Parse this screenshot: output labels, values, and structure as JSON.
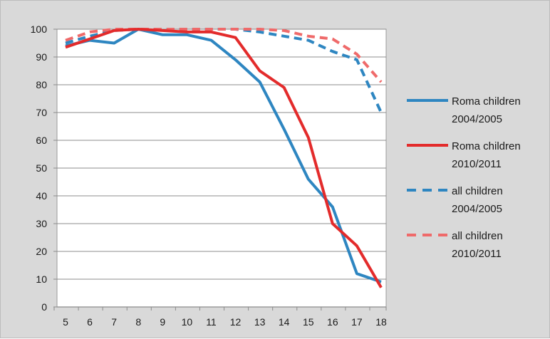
{
  "chart_data": {
    "type": "line",
    "title": "",
    "xlabel": "",
    "ylabel": "",
    "x": [
      5,
      6,
      7,
      8,
      9,
      10,
      11,
      12,
      13,
      14,
      15,
      16,
      17,
      18
    ],
    "ylim": [
      0,
      100
    ],
    "yticks": [
      0,
      10,
      20,
      30,
      40,
      50,
      60,
      70,
      80,
      90,
      100
    ],
    "grid": "horizontal",
    "legend_position": "right",
    "series": [
      {
        "name": [
          "Roma children",
          "2004/2005"
        ],
        "color": "#2e86c1",
        "style": "solid",
        "values": [
          94,
          96,
          95,
          100,
          98,
          98,
          96,
          89,
          81,
          64,
          46,
          36,
          12,
          9
        ]
      },
      {
        "name": [
          "Roma children",
          "2010/2011"
        ],
        "color": "#e32b2b",
        "style": "solid",
        "values": [
          93.5,
          96.5,
          99.5,
          100,
          99.5,
          99,
          99,
          97,
          85,
          79,
          61,
          30,
          22,
          7
        ]
      },
      {
        "name": [
          "all children",
          "2004/2005"
        ],
        "color": "#2e86c1",
        "style": "dashed",
        "values": [
          95,
          97.5,
          99.5,
          100,
          100,
          100,
          100,
          100,
          99,
          97.5,
          96,
          92,
          89,
          70
        ]
      },
      {
        "name": [
          "all children",
          "2010/2011"
        ],
        "color": "#ef6a6a",
        "style": "dashed",
        "values": [
          96,
          99,
          100,
          100,
          100,
          100,
          100,
          100,
          100,
          99.5,
          97.5,
          96.5,
          91,
          81
        ]
      }
    ]
  }
}
